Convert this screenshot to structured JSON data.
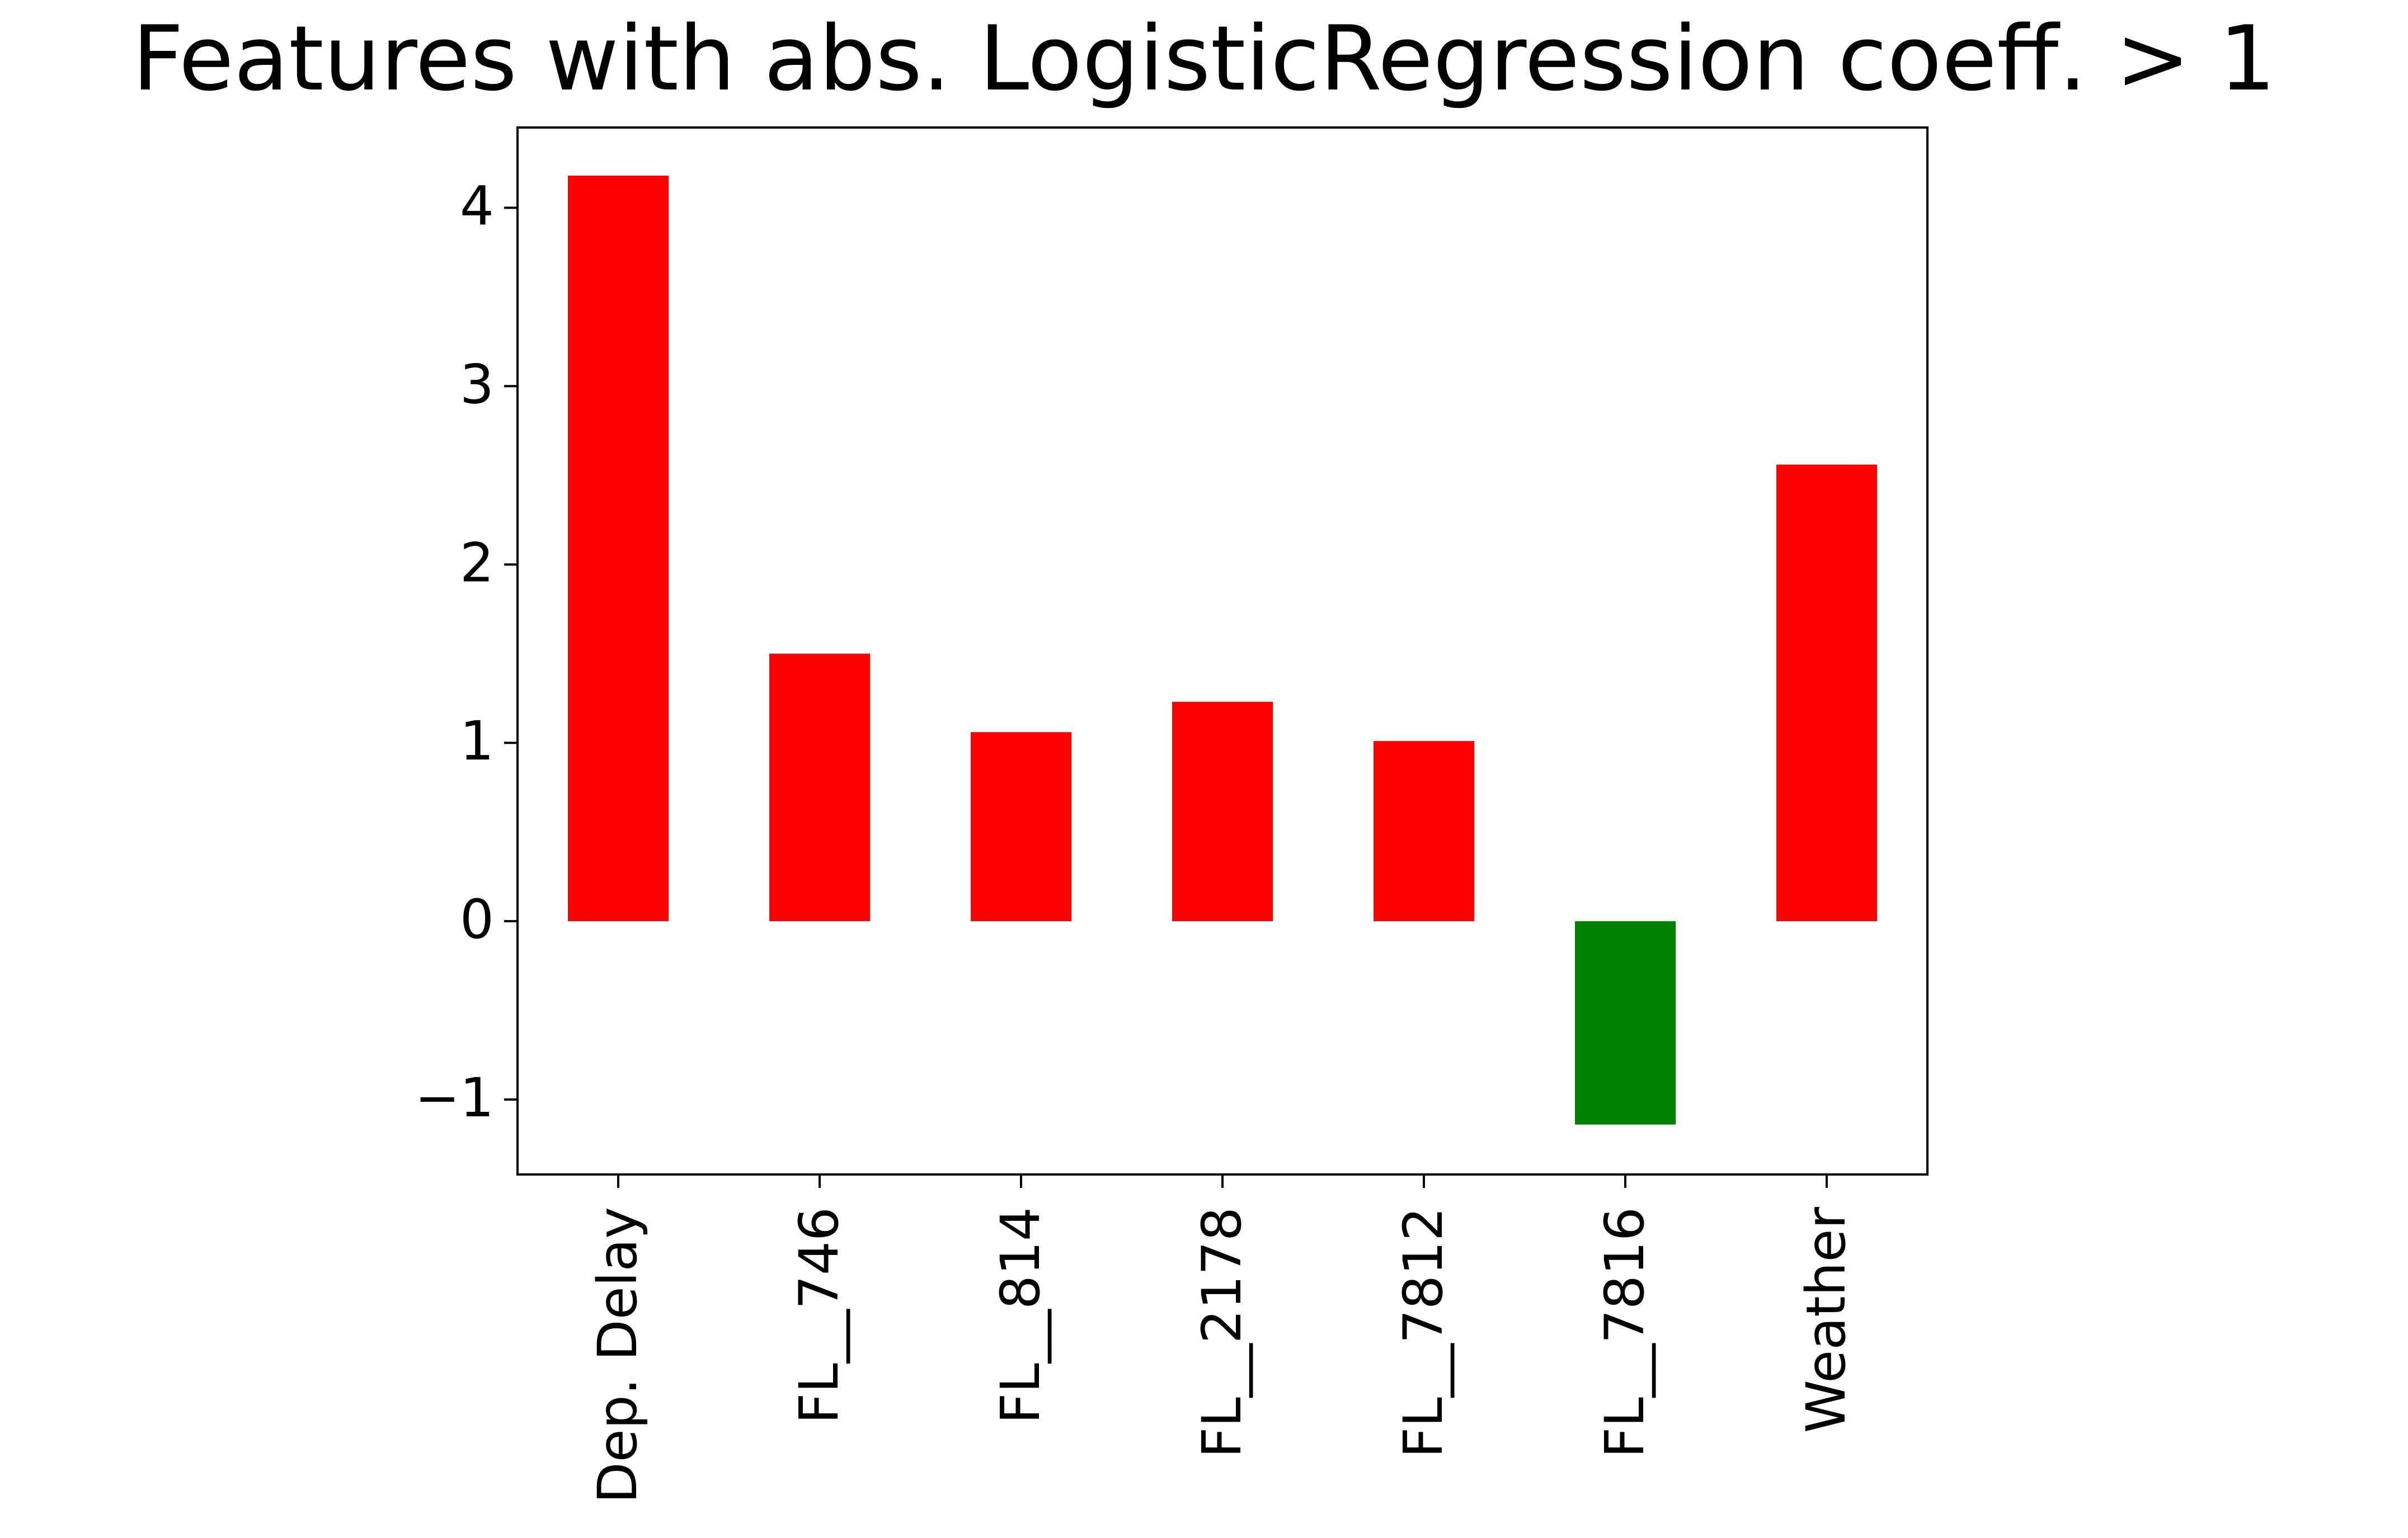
{
  "chart_data": {
    "type": "bar",
    "title": "Features with abs. LogisticRegression coeff. > 1",
    "xlabel": "",
    "ylabel": "",
    "categories": [
      "Dep. Delay",
      "FL__746",
      "FL__814",
      "FL__2178",
      "FL__7812",
      "FL__7816",
      "Weather"
    ],
    "values": [
      4.18,
      1.5,
      1.06,
      1.23,
      1.01,
      -1.14,
      2.56
    ],
    "ylim": [
      -1.42,
      4.45
    ],
    "yticks": [
      -1,
      0,
      1,
      2,
      3,
      4
    ],
    "ytick_labels": [
      "−1",
      "0",
      "1",
      "2",
      "3",
      "4"
    ],
    "grid": false,
    "legend": "none",
    "colors": {
      "positive": "#ff0000",
      "negative": "#008000",
      "axes": "#000000",
      "background": "#ffffff"
    }
  }
}
